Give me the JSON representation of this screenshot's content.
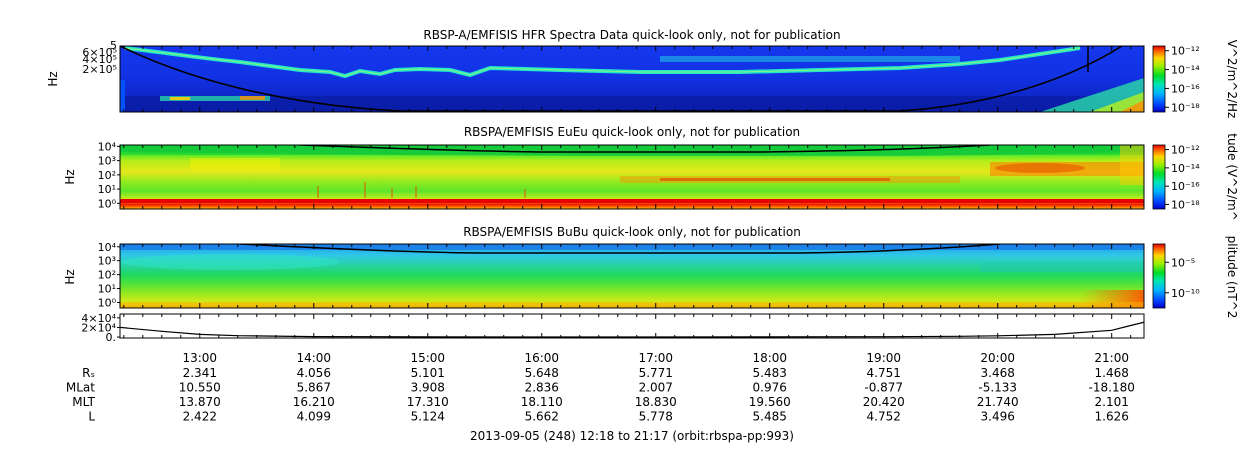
{
  "figure": {
    "footer": "2013-09-05 (248) 12:18 to 21:17 (orbit:rbspa-pp:993)"
  },
  "chart_data": [
    {
      "type": "heatmap",
      "title": "RBSP-A/EMFISIS  HFR Spectra Data quick-look only, not for publication",
      "ylabel": "Hz",
      "ytick_labels": [
        "5",
        "6×10⁵",
        "4×10⁵",
        "2×10⁵"
      ],
      "colorbar_label": "V^2/m^2/Hz",
      "colorbar_ticks": [
        "10⁻¹²",
        "10⁻¹⁴",
        "10⁻¹⁶",
        "10⁻¹⁸"
      ],
      "colorbar_tick_values": [
        -12,
        -14,
        -16,
        -18
      ],
      "colorbar_range": [
        -18.5,
        -11.5
      ]
    },
    {
      "type": "heatmap",
      "title": "RBSPA/EMFISIS  EuEu quick-look only, not for publication",
      "ylabel": "Hz",
      "ytick_labels": [
        "10⁴",
        "10³",
        "10²",
        "10¹",
        "10⁰"
      ],
      "ytick_values": [
        4,
        3,
        2,
        1,
        0
      ],
      "yrange_log": [
        -0.4,
        4.1
      ],
      "colorbar_label": "tude (V^2/m^",
      "colorbar_ticks": [
        "10⁻¹²",
        "10⁻¹⁴",
        "10⁻¹⁶",
        "10⁻¹⁸"
      ],
      "colorbar_tick_values": [
        -12,
        -14,
        -16,
        -18
      ],
      "colorbar_range": [
        -18.5,
        -11.5
      ]
    },
    {
      "type": "heatmap",
      "title": "RBSPA/EMFISIS  BuBu quick-look only, not for publication",
      "ylabel": "Hz",
      "ytick_labels": [
        "10⁴",
        "10³",
        "10²",
        "10¹",
        "10⁰"
      ],
      "ytick_values": [
        4,
        3,
        2,
        1,
        0
      ],
      "yrange_log": [
        -0.4,
        4.2
      ],
      "colorbar_label": "plitude (nT^2",
      "colorbar_ticks": [
        "10⁻⁵",
        "10⁻¹⁰"
      ],
      "colorbar_tick_values": [
        -5,
        -10
      ],
      "colorbar_range": [
        -12.5,
        -2
      ]
    },
    {
      "type": "line",
      "ytick_labels": [
        "4×10⁴",
        "2×10⁴",
        "0."
      ],
      "ytick_values": [
        40000,
        20000,
        0
      ],
      "ylim": [
        -2000,
        48000
      ],
      "x": [
        "12:18",
        "12:40",
        "13:00",
        "13:20",
        "14:00",
        "15:00",
        "16:00",
        "17:00",
        "18:00",
        "19:00",
        "19:40",
        "20:00",
        "20:30",
        "21:00",
        "21:10",
        "21:17"
      ],
      "y": [
        20000,
        12000,
        5500,
        2800,
        900,
        300,
        150,
        120,
        200,
        700,
        1500,
        2500,
        5500,
        14000,
        24000,
        31000
      ]
    }
  ],
  "x_axis": {
    "range": [
      "12:18",
      "21:17"
    ],
    "major_ticks": [
      "13:00",
      "14:00",
      "15:00",
      "16:00",
      "17:00",
      "18:00",
      "19:00",
      "20:00",
      "21:00"
    ],
    "ephemeris": [
      {
        "label": "Rₛ",
        "values": [
          "2.341",
          "4.056",
          "5.101",
          "5.648",
          "5.771",
          "5.483",
          "4.751",
          "3.468",
          "1.468"
        ]
      },
      {
        "label": "MLat",
        "values": [
          "10.550",
          "5.867",
          "3.908",
          "2.836",
          "2.007",
          "0.976",
          "-0.877",
          "-5.133",
          "-18.180"
        ]
      },
      {
        "label": "MLT",
        "values": [
          "13.870",
          "16.210",
          "17.310",
          "18.110",
          "18.830",
          "19.560",
          "20.420",
          "21.740",
          "2.101"
        ]
      },
      {
        "label": "L",
        "values": [
          "2.422",
          "4.099",
          "5.124",
          "5.662",
          "5.778",
          "5.485",
          "4.752",
          "3.496",
          "1.626"
        ]
      }
    ]
  }
}
